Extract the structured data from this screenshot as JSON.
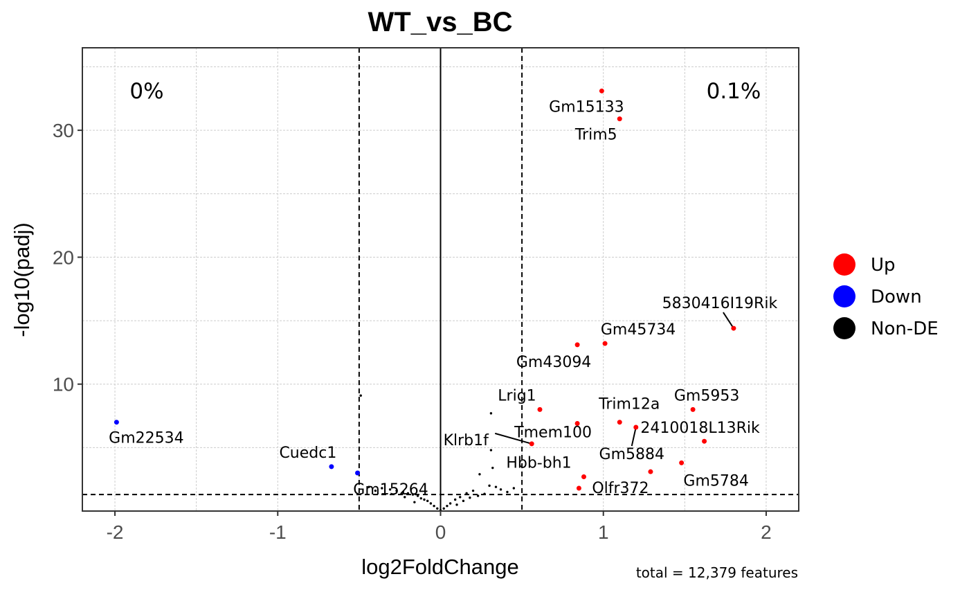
{
  "chart_data": {
    "type": "scatter",
    "title": "WT_vs_BC",
    "xlabel": "log2FoldChange",
    "ylabel": "-log10(padj)",
    "xlim": [
      -2.2,
      2.2
    ],
    "ylim": [
      0,
      36.5
    ],
    "x_ticks": [
      -2,
      -1,
      0,
      1,
      2
    ],
    "x_tick_labels": [
      "-2",
      "-1",
      "0",
      "1",
      "2"
    ],
    "y_ticks": [
      10,
      20,
      30
    ],
    "y_tick_labels": [
      "10",
      "20",
      "30"
    ],
    "thresholds": {
      "log2fc": [
        -0.5,
        0.5
      ],
      "neg_log10_padj": 1.3
    },
    "grid": true,
    "percent_down": "0%",
    "percent_up": "0.1%",
    "caption": "total = 12,379 features",
    "legend": [
      {
        "label": "Up",
        "color": "#ff0000"
      },
      {
        "label": "Down",
        "color": "#0000ff"
      },
      {
        "label": "Non-DE",
        "color": "#000000"
      }
    ],
    "series": [
      {
        "name": "Up",
        "color": "#ff0000",
        "points": [
          {
            "x": 0.99,
            "y": 33.1,
            "label": "Gm15133"
          },
          {
            "x": 1.1,
            "y": 30.9,
            "label": "Trim5"
          },
          {
            "x": 1.8,
            "y": 14.4,
            "label": "5830416I19Rik"
          },
          {
            "x": 1.01,
            "y": 13.2,
            "label": "Gm45734"
          },
          {
            "x": 0.84,
            "y": 13.1,
            "label": "Gm43094"
          },
          {
            "x": 1.55,
            "y": 8.0,
            "label": "Gm5953"
          },
          {
            "x": 0.61,
            "y": 8.0,
            "label": "Lrig1"
          },
          {
            "x": 1.1,
            "y": 7.0,
            "label": "Trim12a"
          },
          {
            "x": 0.84,
            "y": 6.9,
            "label": "Tmem100"
          },
          {
            "x": 1.2,
            "y": 6.6,
            "label": "Gm5884"
          },
          {
            "x": 1.62,
            "y": 5.5,
            "label": "2410018L13Rik"
          },
          {
            "x": 0.56,
            "y": 5.3,
            "label": "Klrb1f"
          },
          {
            "x": 1.48,
            "y": 3.8,
            "label": "Gm5784"
          },
          {
            "x": 1.29,
            "y": 3.1,
            "label": ""
          },
          {
            "x": 0.88,
            "y": 2.7,
            "label": "Hbb-bh1"
          },
          {
            "x": 0.85,
            "y": 1.8,
            "label": "Olfr372"
          }
        ]
      },
      {
        "name": "Down",
        "color": "#0000ff",
        "points": [
          {
            "x": -1.99,
            "y": 7.0,
            "label": "Gm22534"
          },
          {
            "x": -0.67,
            "y": 3.5,
            "label": "Cuedc1"
          },
          {
            "x": -0.51,
            "y": 3.0,
            "label": "Gm15264"
          }
        ]
      },
      {
        "name": "Non-DE",
        "color": "#000000",
        "points": [
          {
            "x": -0.49,
            "y": 9.1
          },
          {
            "x": 0.31,
            "y": 7.7
          },
          {
            "x": 0.31,
            "y": 4.8
          },
          {
            "x": 0.32,
            "y": 3.4
          },
          {
            "x": 0.24,
            "y": 2.9
          },
          {
            "x": 0.3,
            "y": 2.0
          },
          {
            "x": 0.34,
            "y": 1.9
          },
          {
            "x": 0.37,
            "y": 1.7
          },
          {
            "x": 0.45,
            "y": 1.8
          },
          {
            "x": 0.41,
            "y": 1.5
          },
          {
            "x": 0.2,
            "y": 1.6
          },
          {
            "x": 0.16,
            "y": 1.4
          },
          {
            "x": 0.12,
            "y": 1.1
          },
          {
            "x": 0.09,
            "y": 0.9
          },
          {
            "x": 0.06,
            "y": 0.6
          },
          {
            "x": 0.04,
            "y": 0.4
          },
          {
            "x": 0.02,
            "y": 0.2
          },
          {
            "x": 0.0,
            "y": 0.05
          },
          {
            "x": -0.02,
            "y": 0.2
          },
          {
            "x": -0.04,
            "y": 0.4
          },
          {
            "x": -0.06,
            "y": 0.6
          },
          {
            "x": -0.08,
            "y": 0.8
          },
          {
            "x": -0.1,
            "y": 0.9
          },
          {
            "x": -0.12,
            "y": 1.0
          },
          {
            "x": -0.14,
            "y": 1.2
          },
          {
            "x": -0.17,
            "y": 1.3
          },
          {
            "x": -0.2,
            "y": 1.4
          },
          {
            "x": -0.23,
            "y": 1.5
          },
          {
            "x": -0.27,
            "y": 1.6
          },
          {
            "x": -0.31,
            "y": 1.7
          },
          {
            "x": -0.36,
            "y": 1.8
          },
          {
            "x": -0.4,
            "y": 1.6
          },
          {
            "x": -0.44,
            "y": 1.9
          },
          {
            "x": 0.23,
            "y": 1.2
          },
          {
            "x": 0.27,
            "y": 1.35
          },
          {
            "x": 0.14,
            "y": 0.8
          },
          {
            "x": 0.18,
            "y": 1.05
          },
          {
            "x": 0.1,
            "y": 0.5
          },
          {
            "x": -0.16,
            "y": 0.7
          },
          {
            "x": -0.22,
            "y": 1.1
          }
        ]
      }
    ]
  }
}
